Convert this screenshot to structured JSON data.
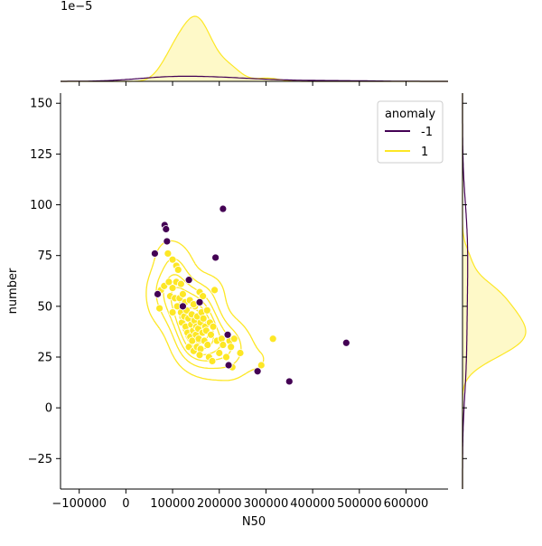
{
  "chart_data": {
    "type": "scatter",
    "title": "",
    "xlabel": "N50",
    "ylabel": "number",
    "xlim": [
      -140000,
      690000
    ],
    "ylim": [
      -40,
      155
    ],
    "x_ticks": [
      -100000,
      0,
      100000,
      200000,
      300000,
      400000,
      500000,
      600000
    ],
    "x_tick_labels": [
      "−100000",
      "0",
      "100000",
      "200000",
      "300000",
      "400000",
      "500000",
      "600000"
    ],
    "y_ticks": [
      -25,
      0,
      25,
      50,
      75,
      100,
      125,
      150
    ],
    "y_tick_labels": [
      "−25",
      "0",
      "25",
      "50",
      "75",
      "100",
      "125",
      "150"
    ],
    "top_marginal_multiplier": "1e−5",
    "grid": false,
    "legend": {
      "title": "anomaly",
      "placement": "top-right",
      "entries": [
        {
          "label": "-1",
          "color": "#440154"
        },
        {
          "label": "1",
          "color": "#fde725"
        }
      ]
    },
    "series": [
      {
        "name": "-1",
        "color": "#440154",
        "points": [
          [
            83000,
            90
          ],
          [
            86000,
            88
          ],
          [
            88000,
            82
          ],
          [
            62000,
            76
          ],
          [
            68000,
            56
          ],
          [
            135000,
            63
          ],
          [
            122000,
            50
          ],
          [
            158000,
            52
          ],
          [
            192000,
            74
          ],
          [
            208000,
            98
          ],
          [
            218000,
            36
          ],
          [
            220000,
            21
          ],
          [
            282000,
            18
          ],
          [
            350000,
            13
          ],
          [
            472000,
            32
          ]
        ]
      },
      {
        "name": "1",
        "color": "#fde725",
        "points": [
          [
            75000,
            58
          ],
          [
            82000,
            60
          ],
          [
            90000,
            76
          ],
          [
            72000,
            49
          ],
          [
            100000,
            73
          ],
          [
            108000,
            70
          ],
          [
            112000,
            68
          ],
          [
            95000,
            55
          ],
          [
            100000,
            59
          ],
          [
            105000,
            54
          ],
          [
            110000,
            50
          ],
          [
            115000,
            54
          ],
          [
            118000,
            47
          ],
          [
            120000,
            42
          ],
          [
            122000,
            56
          ],
          [
            125000,
            45
          ],
          [
            127000,
            52
          ],
          [
            128000,
            40
          ],
          [
            130000,
            48
          ],
          [
            132000,
            37
          ],
          [
            134000,
            44
          ],
          [
            135000,
            30
          ],
          [
            137000,
            53
          ],
          [
            138000,
            35
          ],
          [
            140000,
            41
          ],
          [
            141000,
            46
          ],
          [
            142000,
            33
          ],
          [
            144000,
            38
          ],
          [
            145000,
            28
          ],
          [
            147000,
            43
          ],
          [
            148000,
            50
          ],
          [
            150000,
            36
          ],
          [
            151000,
            40
          ],
          [
            152000,
            30
          ],
          [
            153000,
            45
          ],
          [
            155000,
            39
          ],
          [
            156000,
            34
          ],
          [
            158000,
            57
          ],
          [
            160000,
            42
          ],
          [
            160000,
            29
          ],
          [
            162000,
            47
          ],
          [
            164000,
            37
          ],
          [
            165000,
            55
          ],
          [
            166000,
            44
          ],
          [
            168000,
            33
          ],
          [
            170000,
            40
          ],
          [
            172000,
            38
          ],
          [
            174000,
            48
          ],
          [
            175000,
            31
          ],
          [
            178000,
            25
          ],
          [
            180000,
            42
          ],
          [
            182000,
            36
          ],
          [
            185000,
            23
          ],
          [
            187000,
            40
          ],
          [
            190000,
            58
          ],
          [
            195000,
            33
          ],
          [
            200000,
            27
          ],
          [
            205000,
            34
          ],
          [
            208000,
            31
          ],
          [
            215000,
            25
          ],
          [
            222000,
            33
          ],
          [
            225000,
            30
          ],
          [
            228000,
            20
          ],
          [
            232000,
            34
          ],
          [
            245000,
            27
          ],
          [
            290000,
            21
          ],
          [
            315000,
            34
          ],
          [
            100000,
            47
          ],
          [
            108000,
            62
          ],
          [
            118000,
            61
          ],
          [
            92000,
            62
          ],
          [
            145000,
            51
          ],
          [
            158000,
            26
          ]
        ]
      }
    ]
  }
}
